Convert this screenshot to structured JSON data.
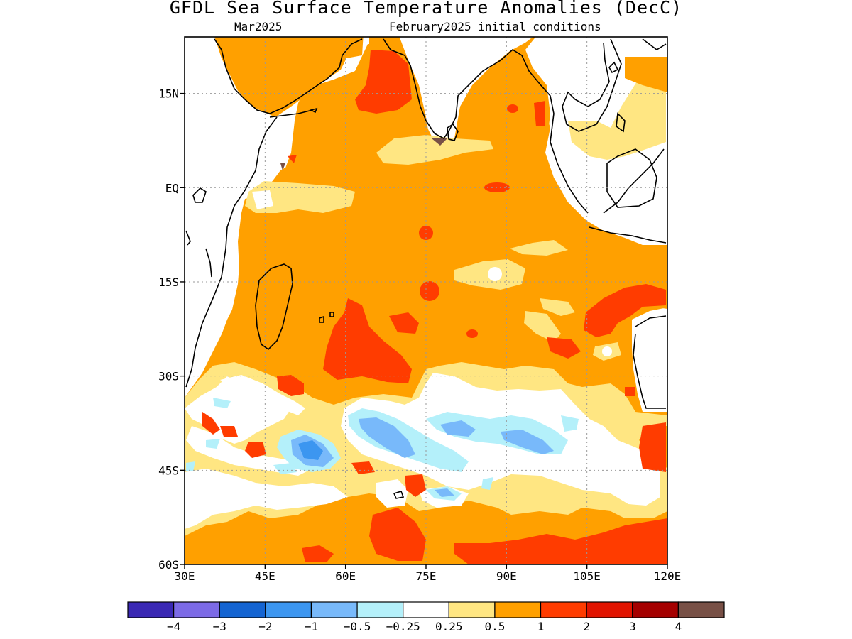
{
  "title": "GFDL Sea Surface Temperature Anomalies (DecC)",
  "subtitle_left": "Mar2025",
  "subtitle_right": "February2025 initial conditions",
  "map": {
    "lon_range": [
      30,
      120
    ],
    "lat_range": [
      -60,
      24
    ],
    "x_ticks": [
      {
        "value": 30,
        "label": "30E"
      },
      {
        "value": 45,
        "label": "45E"
      },
      {
        "value": 60,
        "label": "60E"
      },
      {
        "value": 75,
        "label": "75E"
      },
      {
        "value": 90,
        "label": "90E"
      },
      {
        "value": 105,
        "label": "105E"
      },
      {
        "value": 120,
        "label": "120E"
      }
    ],
    "y_ticks": [
      {
        "value": 15,
        "label": "15N"
      },
      {
        "value": 0,
        "label": "EQ"
      },
      {
        "value": -15,
        "label": "15S"
      },
      {
        "value": -30,
        "label": "30S"
      },
      {
        "value": -45,
        "label": "45S"
      },
      {
        "value": -60,
        "label": "60S"
      }
    ],
    "grid": "dotted"
  },
  "colorbar": {
    "colors": [
      "#3a28b4",
      "#7c6ae6",
      "#1464d2",
      "#3c96f0",
      "#78b9fa",
      "#b4f0fa",
      "#ffffff",
      "#ffe682",
      "#ffa000",
      "#ff3c00",
      "#e11400",
      "#a50000",
      "#785046"
    ],
    "labels": [
      "−4",
      "−3",
      "−2",
      "−1",
      "−0.5",
      "−0.25",
      "0.25",
      "0.5",
      "1",
      "2",
      "3",
      "4"
    ]
  }
}
